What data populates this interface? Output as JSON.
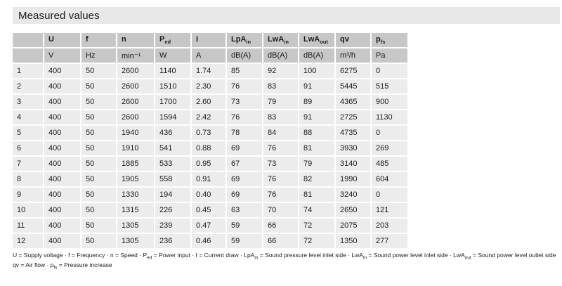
{
  "title": "Measured values",
  "colors": {
    "title_bar": "#e8e8e8",
    "header_cell": "#c7c7c7",
    "data_cell": "#ececec",
    "text": "#1a1a1a"
  },
  "table": {
    "columns": [
      {
        "main": "",
        "sub": ""
      },
      {
        "main": "U",
        "sub": ""
      },
      {
        "main": "f",
        "sub": ""
      },
      {
        "main": "n",
        "sub": ""
      },
      {
        "main": "P",
        "sub": "ed"
      },
      {
        "main": "I",
        "sub": ""
      },
      {
        "main": "LpA",
        "sub": "in"
      },
      {
        "main": "LwA",
        "sub": "in"
      },
      {
        "main": "LwA",
        "sub": "out"
      },
      {
        "main": "qv",
        "sub": ""
      },
      {
        "main": "p",
        "sub": "fs"
      }
    ],
    "units": [
      "",
      "V",
      "Hz",
      "min⁻¹",
      "W",
      "A",
      "dB(A)",
      "dB(A)",
      "dB(A)",
      "m³/h",
      "Pa"
    ],
    "rows": [
      [
        "1",
        "400",
        "50",
        "2600",
        "1140",
        "1.74",
        "85",
        "92",
        "100",
        "6275",
        "0"
      ],
      [
        "2",
        "400",
        "50",
        "2600",
        "1510",
        "2.30",
        "76",
        "83",
        "91",
        "5445",
        "515"
      ],
      [
        "3",
        "400",
        "50",
        "2600",
        "1700",
        "2.60",
        "73",
        "79",
        "89",
        "4365",
        "900"
      ],
      [
        "4",
        "400",
        "50",
        "2600",
        "1594",
        "2.42",
        "76",
        "83",
        "91",
        "2725",
        "1130"
      ],
      [
        "5",
        "400",
        "50",
        "1940",
        "436",
        "0.73",
        "78",
        "84",
        "88",
        "4735",
        "0"
      ],
      [
        "6",
        "400",
        "50",
        "1910",
        "541",
        "0.88",
        "69",
        "76",
        "81",
        "3930",
        "269"
      ],
      [
        "7",
        "400",
        "50",
        "1885",
        "533",
        "0.95",
        "67",
        "73",
        "79",
        "3140",
        "485"
      ],
      [
        "8",
        "400",
        "50",
        "1905",
        "558",
        "0.91",
        "69",
        "76",
        "82",
        "1990",
        "604"
      ],
      [
        "9",
        "400",
        "50",
        "1330",
        "194",
        "0.40",
        "69",
        "76",
        "81",
        "3240",
        "0"
      ],
      [
        "10",
        "400",
        "50",
        "1315",
        "226",
        "0.45",
        "63",
        "70",
        "74",
        "2650",
        "121"
      ],
      [
        "11",
        "400",
        "50",
        "1305",
        "239",
        "0.47",
        "59",
        "66",
        "72",
        "2075",
        "203"
      ],
      [
        "12",
        "400",
        "50",
        "1305",
        "236",
        "0.46",
        "59",
        "66",
        "72",
        "1350",
        "277"
      ]
    ]
  },
  "footnote": {
    "line1": [
      {
        "t": "U = Supply voltage · f = Frequency · n = Speed · P"
      },
      {
        "sub": "ed"
      },
      {
        "t": " = Power input · I = Current draw · LpA"
      },
      {
        "sub": "in"
      },
      {
        "t": " = Sound pressure level inlet side · LwA"
      },
      {
        "sub": "in"
      },
      {
        "t": " = Sound power level inlet side · LwA"
      },
      {
        "sub": "out"
      },
      {
        "t": " = Sound power level outlet side"
      }
    ],
    "line2": [
      {
        "t": "qv = Air flow · p"
      },
      {
        "sub": "fs"
      },
      {
        "t": " = Pressure increase"
      }
    ]
  }
}
